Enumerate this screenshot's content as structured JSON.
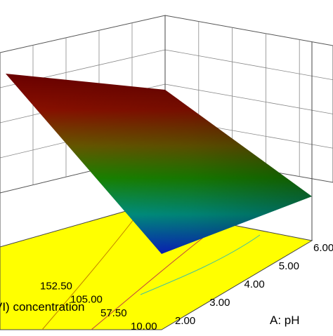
{
  "chart_data": {
    "type": "surface3d",
    "x_axis": {
      "label": "A: pH",
      "ticks": [
        "2.00",
        "3.00",
        "4.00",
        "5.00",
        "6.00"
      ],
      "range": [
        2,
        6
      ]
    },
    "y_axis": {
      "label": "VI) concentration",
      "ticks": [
        "10.00",
        "57.50",
        "105.00",
        "152.50"
      ],
      "range": [
        10,
        200
      ]
    },
    "surface_corners": {
      "description": "fitted response surface, high at low pH / high concentration, low at high pH / low concentration",
      "relative_height": {
        "pH2_conc200": 1.0,
        "pH6_conc200": 0.78,
        "pH2_conc10": 0.05,
        "pH6_conc10": 0.0
      }
    },
    "colormap": [
      "#0022cc",
      "#00a0a0",
      "#00b000",
      "#b0b000",
      "#c02000",
      "#700000"
    ],
    "contour_floor_color": "#ffff00",
    "grid": true
  }
}
